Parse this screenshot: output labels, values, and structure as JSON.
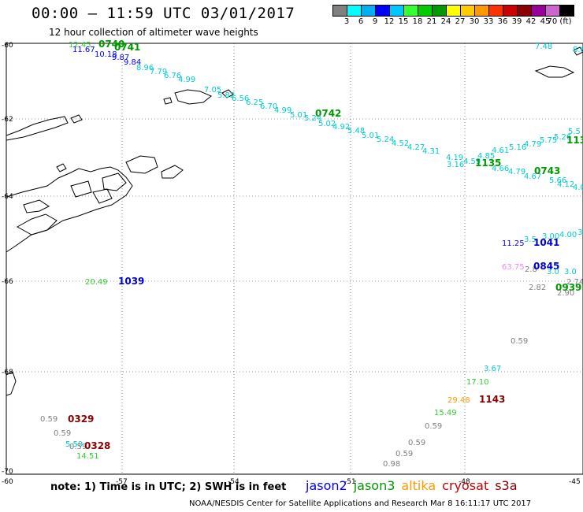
{
  "header": {
    "title": "00:00 – 11:59 UTC 03/01/2017",
    "subtitle": "12 hour collection of altimeter wave heights"
  },
  "colorbar": {
    "colors": [
      "#808080",
      "#00ffff",
      "#00b0f0",
      "#0000ff",
      "#00c8ff",
      "#33ff33",
      "#00cc00",
      "#009900",
      "#ffff00",
      "#ffcc00",
      "#ff9900",
      "#ff3300",
      "#cc0000",
      "#8b0000",
      "#990099",
      "#cc66cc",
      "#000000"
    ],
    "labels": [
      "3",
      "6",
      "9",
      "12",
      "15",
      "18",
      "21",
      "24",
      "27",
      "30",
      "33",
      "36",
      "39",
      "42",
      "45",
      "70 (ft)"
    ]
  },
  "axes": {
    "lat_labels": [
      "-60",
      "-62",
      "-64",
      "-66",
      "-68",
      "-70"
    ],
    "lon_labels": [
      "-60",
      "-57",
      "-54",
      "-51",
      "-48",
      "-45"
    ]
  },
  "observations": [
    {
      "text": "12.45",
      "color": "#33cc33"
    },
    {
      "text": "0740",
      "color": "#009900",
      "time": true
    },
    {
      "text": "11.67",
      "color": "#0000ff"
    },
    {
      "text": "0741",
      "color": "#009900",
      "time": true
    },
    {
      "text": "10.18",
      "color": "#0000ff"
    },
    {
      "text": "9.87",
      "color": "#0000ff"
    },
    {
      "text": "9.84",
      "color": "#0000ff"
    },
    {
      "text": "8.96",
      "color": "#00cccc"
    },
    {
      "text": "7.79",
      "color": "#00cccc"
    },
    {
      "text": "6.76",
      "color": "#00cccc"
    },
    {
      "text": "4.99",
      "color": "#00cccc"
    },
    {
      "text": "7.05",
      "color": "#00cccc"
    },
    {
      "text": "5.82",
      "color": "#00cccc"
    },
    {
      "text": "6.56",
      "color": "#00cccc"
    },
    {
      "text": "6.25",
      "color": "#00cccc"
    },
    {
      "text": "6.70",
      "color": "#00cccc"
    },
    {
      "text": "4.99",
      "color": "#00cccc"
    },
    {
      "text": "5.01",
      "color": "#00cccc"
    },
    {
      "text": "0742",
      "color": "#009900",
      "time": true
    },
    {
      "text": "5.24",
      "color": "#00cccc"
    },
    {
      "text": "5.02",
      "color": "#00cccc"
    },
    {
      "text": "4.92",
      "color": "#00cccc"
    },
    {
      "text": "5.48",
      "color": "#00cccc"
    },
    {
      "text": "5.01",
      "color": "#00cccc"
    },
    {
      "text": "5.24",
      "color": "#00cccc"
    },
    {
      "text": "4.52",
      "color": "#00cccc"
    },
    {
      "text": "4.27",
      "color": "#00cccc"
    },
    {
      "text": "4.31",
      "color": "#00cccc"
    },
    {
      "text": "4.19",
      "color": "#00cccc"
    },
    {
      "text": "3.16",
      "color": "#00cccc"
    },
    {
      "text": "4.59",
      "color": "#00cccc"
    },
    {
      "text": "1135",
      "color": "#009900",
      "time": true
    },
    {
      "text": "4.85",
      "color": "#00cccc"
    },
    {
      "text": "4.61",
      "color": "#00cccc"
    },
    {
      "text": "5.16",
      "color": "#00cccc"
    },
    {
      "text": "4.79",
      "color": "#00cccc"
    },
    {
      "text": "5.75",
      "color": "#00cccc"
    },
    {
      "text": "5.26",
      "color": "#00cccc"
    },
    {
      "text": "5.5",
      "color": "#00cccc"
    },
    {
      "text": "113",
      "color": "#009900",
      "time": true
    },
    {
      "text": "4.66",
      "color": "#00cccc"
    },
    {
      "text": "4.79",
      "color": "#00cccc"
    },
    {
      "text": "4.67",
      "color": "#00cccc"
    },
    {
      "text": "0743",
      "color": "#009900",
      "time": true
    },
    {
      "text": "5.66",
      "color": "#00cccc"
    },
    {
      "text": "4.12",
      "color": "#00cccc"
    },
    {
      "text": "4.0",
      "color": "#00cccc"
    },
    {
      "text": "7.48",
      "color": "#00cccc"
    },
    {
      "text": "8.6",
      "color": "#00cccc"
    },
    {
      "text": "11.25",
      "color": "#0000ff"
    },
    {
      "text": "3.5",
      "color": "#00cccc"
    },
    {
      "text": "3.00",
      "color": "#00cccc"
    },
    {
      "text": "4.00",
      "color": "#00cccc"
    },
    {
      "text": "3.",
      "color": "#00cccc"
    },
    {
      "text": "1041",
      "color": "#0000cc",
      "time": true
    },
    {
      "text": "63.75",
      "color": "#ee88ee"
    },
    {
      "text": "2.8",
      "color": "#808080"
    },
    {
      "text": "0845",
      "color": "#0000cc",
      "time": true
    },
    {
      "text": "3.0",
      "color": "#00cccc"
    },
    {
      "text": "3.0",
      "color": "#00cccc"
    },
    {
      "text": "2.82",
      "color": "#808080"
    },
    {
      "text": "0939",
      "color": "#009900",
      "time": true
    },
    {
      "text": "2.74",
      "color": "#808080"
    },
    {
      "text": "2.90",
      "color": "#808080"
    },
    {
      "text": "20.49",
      "color": "#33cc33"
    },
    {
      "text": "1039",
      "color": "#0000cc",
      "time": true
    },
    {
      "text": "0.59",
      "color": "#808080"
    },
    {
      "text": "3.67",
      "color": "#00cccc"
    },
    {
      "text": "17.10",
      "color": "#33cc33"
    },
    {
      "text": "29.48",
      "color": "#ff9900"
    },
    {
      "text": "1143",
      "color": "#8b0000",
      "time": true
    },
    {
      "text": "15.49",
      "color": "#33cc33"
    },
    {
      "text": "0.59",
      "color": "#808080"
    },
    {
      "text": "0.59",
      "color": "#808080"
    },
    {
      "text": "0.59",
      "color": "#808080"
    },
    {
      "text": "0.98",
      "color": "#808080"
    },
    {
      "text": "0.59",
      "color": "#808080"
    },
    {
      "text": "0329",
      "color": "#8b0000",
      "time": true
    },
    {
      "text": "0.59",
      "color": "#808080"
    },
    {
      "text": "5.59",
      "color": "#00cccc"
    },
    {
      "text": "0.59",
      "color": "#808080"
    },
    {
      "text": "0328",
      "color": "#8b0000",
      "time": true
    },
    {
      "text": "14.51",
      "color": "#33cc33"
    }
  ],
  "note": "note:  1) Time is in UTC;  2) SWH is in feet",
  "legend": [
    {
      "name": "jason2",
      "color": "#0000ff"
    },
    {
      "name": "jason3",
      "color": "#009900"
    },
    {
      "name": "altika",
      "color": "#ff9900"
    },
    {
      "name": "cryosat",
      "color": "#cc0000"
    },
    {
      "name": "s3a",
      "color": "#8b0000"
    }
  ],
  "footer": "NOAA/NESDIS Center for Satellite Applications and Research    Mar  8 16:11:17 UTC 2017"
}
